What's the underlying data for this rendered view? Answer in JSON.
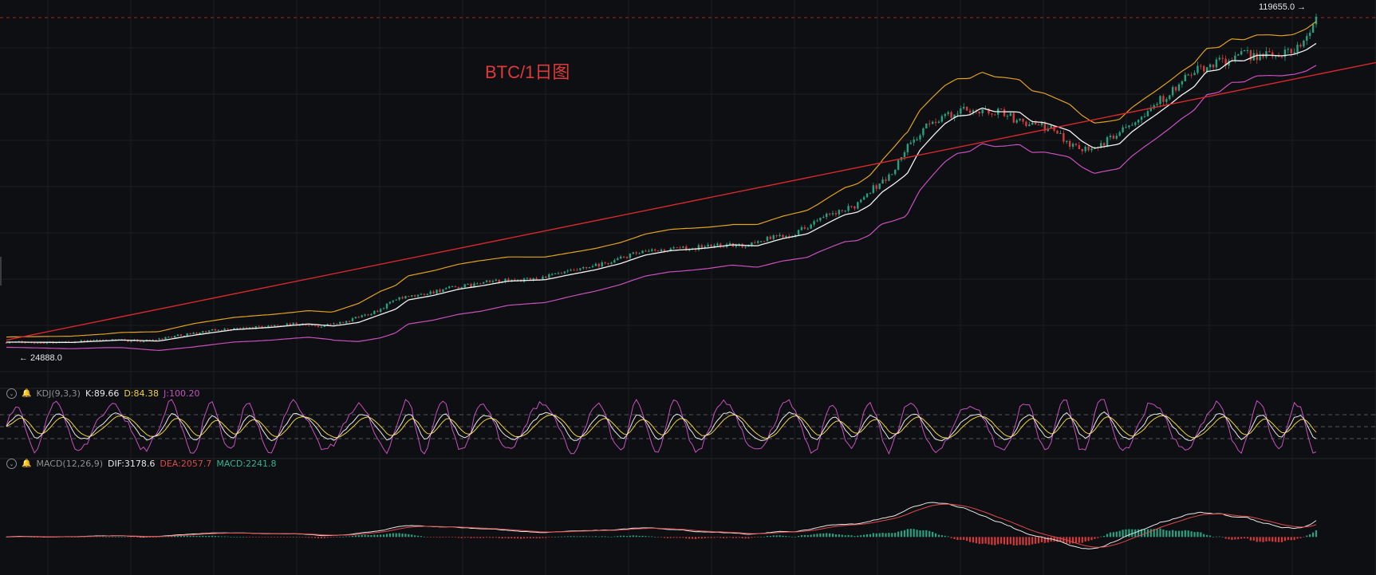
{
  "chart_data": [
    {
      "type": "candlestick",
      "title": "BTC/1日图",
      "ylim": [
        20000,
        122000
      ],
      "annotations": {
        "high_label": "119655.0 →",
        "low_label": "← 24888.0"
      },
      "series": [
        {
          "name": "",
          "kind": "bollinger-upper",
          "color": "#e3a21a"
        },
        {
          "name": "",
          "kind": "bollinger-middle",
          "color": "#f2f2f2"
        },
        {
          "name": "",
          "kind": "bollinger-lower",
          "color": "#c94fbf"
        },
        {
          "name": "",
          "kind": "trendline",
          "color": "#d8282c"
        }
      ],
      "path_points": [
        [
          0,
          24888
        ],
        [
          4,
          24800
        ],
        [
          8,
          25500
        ],
        [
          11,
          25200
        ],
        [
          14,
          27000
        ],
        [
          17,
          28500
        ],
        [
          20,
          29200
        ],
        [
          23,
          30200
        ],
        [
          25,
          29600
        ],
        [
          27,
          30600
        ],
        [
          30,
          34500
        ],
        [
          31,
          37200
        ],
        [
          33,
          38500
        ],
        [
          35,
          40300
        ],
        [
          37,
          41400
        ],
        [
          39,
          42700
        ],
        [
          42,
          43100
        ],
        [
          44,
          44600
        ],
        [
          46,
          46000
        ],
        [
          48,
          47800
        ],
        [
          50,
          50300
        ],
        [
          52,
          51600
        ],
        [
          54,
          52100
        ],
        [
          55,
          52400
        ],
        [
          57,
          53300
        ],
        [
          59,
          53000
        ],
        [
          61,
          55100
        ],
        [
          63,
          56500
        ],
        [
          65,
          60300
        ],
        [
          66,
          62100
        ],
        [
          67,
          62800
        ],
        [
          68,
          64800
        ],
        [
          69,
          68700
        ],
        [
          70,
          71200
        ],
        [
          71,
          74000
        ],
        [
          72,
          80800
        ],
        [
          73,
          84800
        ],
        [
          74,
          88600
        ],
        [
          75,
          90900
        ],
        [
          76,
          91200
        ],
        [
          77,
          93300
        ],
        [
          78,
          92200
        ],
        [
          80,
          92100
        ],
        [
          81,
          89300
        ],
        [
          82,
          89000
        ],
        [
          84,
          86700
        ],
        [
          85,
          83600
        ],
        [
          86,
          81500
        ],
        [
          87,
          82100
        ],
        [
          88,
          82700
        ],
        [
          89,
          86200
        ],
        [
          90,
          88900
        ],
        [
          91,
          91400
        ],
        [
          92,
          94100
        ],
        [
          93,
          97000
        ],
        [
          94,
          99400
        ],
        [
          95,
          103900
        ],
        [
          96,
          104400
        ],
        [
          97,
          107100
        ],
        [
          98,
          107000
        ],
        [
          99,
          108600
        ],
        [
          100,
          108700
        ],
        [
          101,
          108500
        ],
        [
          102,
          108900
        ],
        [
          103,
          110200
        ],
        [
          104,
          112600
        ],
        [
          105,
          119655
        ]
      ],
      "bb_halfwidth": [
        [
          0,
          1500
        ],
        [
          8,
          2000
        ],
        [
          12,
          2700
        ],
        [
          15,
          3400
        ],
        [
          20,
          3700
        ],
        [
          23,
          3800
        ],
        [
          26,
          4000
        ],
        [
          30,
          6800
        ],
        [
          34,
          7200
        ],
        [
          38,
          7400
        ],
        [
          42,
          6800
        ],
        [
          46,
          6300
        ],
        [
          50,
          6100
        ],
        [
          54,
          6200
        ],
        [
          58,
          5900
        ],
        [
          62,
          6500
        ],
        [
          65,
          7000
        ],
        [
          68,
          8200
        ],
        [
          70,
          9000
        ],
        [
          72,
          12000
        ],
        [
          75,
          11200
        ],
        [
          80,
          10000
        ],
        [
          85,
          7800
        ],
        [
          88,
          7200
        ],
        [
          92,
          7000
        ],
        [
          96,
          6800
        ],
        [
          100,
          6000
        ],
        [
          103,
          5800
        ],
        [
          105,
          6400
        ]
      ],
      "trendline": [
        [
          0,
          25500
        ],
        [
          105,
          103000
        ]
      ]
    },
    {
      "type": "line",
      "indicator": "KDJ(9,3,3)",
      "values": {
        "K": "K:89.66",
        "D": "D:84.38",
        "J": "J:100.20"
      },
      "ylim": [
        -20,
        120
      ],
      "reference_levels": [
        80,
        50,
        20
      ]
    },
    {
      "type": "bar",
      "indicator": "MACD(12,26,9)",
      "values": {
        "DIF": "DIF:3178.6",
        "DEA": "DEA:2057.7",
        "MACD": "MACD:2241.8"
      },
      "ylim": [
        -3500,
        6000
      ],
      "colors": {
        "positive": "#26a281",
        "negative": "#d4393b",
        "dif": "#e8e8e8",
        "dea": "#e0484a"
      }
    }
  ],
  "indicators": {
    "kdj": {
      "name": "KDJ(9,3,3)",
      "k": "K:89.66",
      "d": "D:84.38",
      "j": "J:100.20"
    },
    "macd": {
      "name": "MACD(12,26,9)",
      "dif": "DIF:3178.6",
      "dea": "DEA:2057.7",
      "macd": "MACD:2241.8"
    }
  },
  "icons": {
    "toggle": "chevron-down-icon",
    "alert": "bell-icon"
  }
}
